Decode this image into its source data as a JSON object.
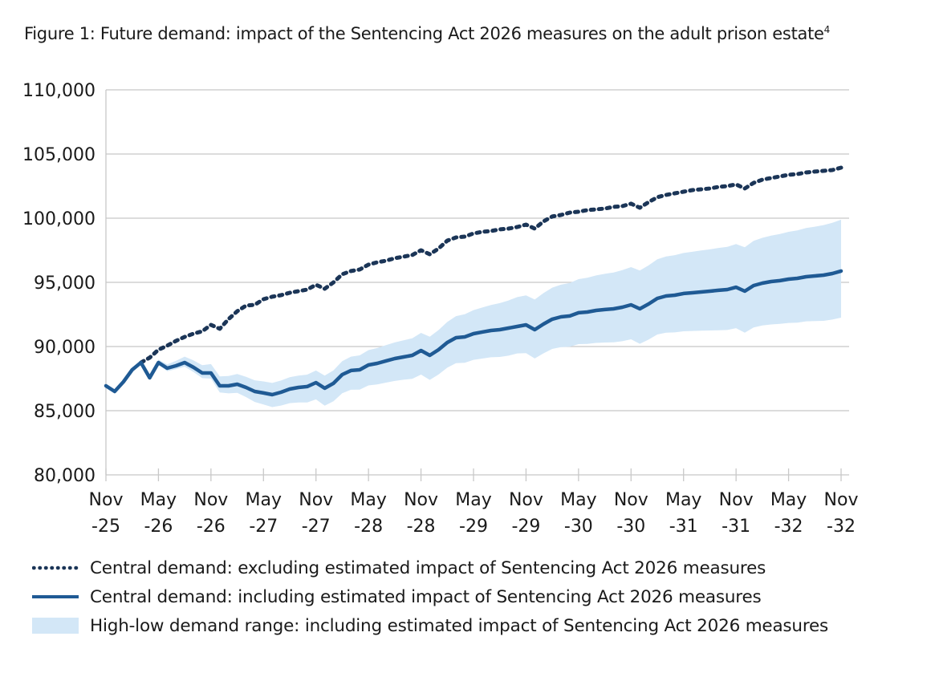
{
  "title": {
    "text": "Figure 1: Future demand: impact of the Sentencing Act 2026 measures on the adult prison estate",
    "footnote": "4"
  },
  "colors": {
    "excluding": "#1b3557",
    "including": "#1f5a94",
    "range": "#d3e7f7",
    "grid": "#c8c8c8",
    "text": "#1a1a1a"
  },
  "chart_data": {
    "type": "line",
    "title": "Figure 1: Future demand: impact of the Sentencing Act 2026 measures on the adult prison estate",
    "xlabel": "",
    "ylabel": "",
    "ylim": [
      80000,
      110000
    ],
    "yticks": [
      80000,
      85000,
      90000,
      95000,
      100000,
      105000,
      110000
    ],
    "ytick_labels": [
      "80,000",
      "85,000",
      "90,000",
      "95,000",
      "100,000",
      "105,000",
      "110,000"
    ],
    "grid": true,
    "x_range_months": [
      0,
      84
    ],
    "x_start": "Nov 2025",
    "x_step": "1 month",
    "xticks": [
      {
        "month_index": 0,
        "line1": "Nov",
        "line2": "-25"
      },
      {
        "month_index": 6,
        "line1": "May",
        "line2": "-26"
      },
      {
        "month_index": 12,
        "line1": "Nov",
        "line2": "-26"
      },
      {
        "month_index": 18,
        "line1": "May",
        "line2": "-27"
      },
      {
        "month_index": 24,
        "line1": "Nov",
        "line2": "-27"
      },
      {
        "month_index": 30,
        "line1": "May",
        "line2": "-28"
      },
      {
        "month_index": 36,
        "line1": "Nov",
        "line2": "-28"
      },
      {
        "month_index": 42,
        "line1": "May",
        "line2": "-29"
      },
      {
        "month_index": 48,
        "line1": "Nov",
        "line2": "-29"
      },
      {
        "month_index": 54,
        "line1": "May",
        "line2": "-30"
      },
      {
        "month_index": 60,
        "line1": "Nov",
        "line2": "-30"
      },
      {
        "month_index": 66,
        "line1": "May",
        "line2": "-31"
      },
      {
        "month_index": 72,
        "line1": "Nov",
        "line2": "-31"
      },
      {
        "month_index": 78,
        "line1": "May",
        "line2": "-32"
      },
      {
        "month_index": 84,
        "line1": "Nov",
        "line2": "-32"
      }
    ],
    "series": [
      {
        "name": "Central demand: excluding estimated impact of Sentencing Act 2026 measures",
        "style": "dotted",
        "start_index": 4,
        "values": [
          88750,
          89130,
          89750,
          90060,
          90440,
          90750,
          91000,
          91190,
          91690,
          91380,
          92130,
          92750,
          93190,
          93250,
          93690,
          93880,
          94000,
          94190,
          94310,
          94440,
          94810,
          94500,
          95000,
          95630,
          95880,
          96000,
          96380,
          96560,
          96690,
          96880,
          97000,
          97130,
          97500,
          97190,
          97630,
          98250,
          98500,
          98560,
          98810,
          98940,
          99000,
          99130,
          99190,
          99310,
          99500,
          99190,
          99750,
          100130,
          100250,
          100440,
          100500,
          100630,
          100690,
          100750,
          100880,
          100940,
          101130,
          100810,
          101250,
          101630,
          101810,
          101940,
          102060,
          102190,
          102250,
          102310,
          102440,
          102500,
          102630,
          102310,
          102750,
          103000,
          103130,
          103250,
          103380,
          103440,
          103560,
          103630,
          103690,
          103750,
          103940
        ]
      },
      {
        "name": "Central demand: including estimated impact of Sentencing Act 2026 measures",
        "style": "solid",
        "start_index": 0,
        "values": [
          86940,
          86500,
          87250,
          88190,
          88750,
          87560,
          88750,
          88310,
          88500,
          88750,
          88380,
          87940,
          87940,
          86940,
          86940,
          87060,
          86810,
          86500,
          86380,
          86250,
          86440,
          86690,
          86810,
          86880,
          87190,
          86750,
          87130,
          87810,
          88130,
          88190,
          88560,
          88690,
          88880,
          89060,
          89190,
          89310,
          89690,
          89310,
          89750,
          90310,
          90690,
          90750,
          91000,
          91130,
          91250,
          91310,
          91440,
          91560,
          91690,
          91310,
          91750,
          92130,
          92310,
          92380,
          92630,
          92690,
          92810,
          92880,
          92940,
          93060,
          93250,
          92940,
          93310,
          93750,
          93940,
          94000,
          94130,
          94190,
          94250,
          94310,
          94380,
          94440,
          94620,
          94310,
          94750,
          94940,
          95060,
          95130,
          95250,
          95310,
          95440,
          95500,
          95560,
          95690,
          95880
        ]
      }
    ],
    "range": {
      "name": "High-low demand range: including estimated impact of Sentencing Act 2026 measures",
      "start_index": 5,
      "upper": [
        87710,
        88980,
        88610,
        88880,
        89210,
        88920,
        88550,
        88630,
        87670,
        87700,
        87860,
        87640,
        87370,
        87280,
        87160,
        87350,
        87610,
        87740,
        87810,
        88130,
        87730,
        88140,
        88860,
        89210,
        89310,
        89720,
        89880,
        90110,
        90320,
        90490,
        90640,
        91060,
        90760,
        91280,
        91910,
        92370,
        92510,
        92840,
        93040,
        93240,
        93380,
        93590,
        93850,
        93990,
        93660,
        94160,
        94590,
        94820,
        94950,
        95250,
        95360,
        95540,
        95660,
        95770,
        95950,
        96190,
        95920,
        96320,
        96800,
        97020,
        97120,
        97290,
        97380,
        97480,
        97570,
        97680,
        97770,
        97990,
        97730,
        98230,
        98470,
        98640,
        98760,
        98940,
        99050,
        99230,
        99340,
        99460,
        99640,
        99880
      ],
      "lower": [
        87410,
        88560,
        88080,
        88230,
        88430,
        88020,
        87540,
        87500,
        86420,
        86350,
        86390,
        86060,
        85680,
        85480,
        85280,
        85400,
        85590,
        85640,
        85640,
        85880,
        85390,
        85730,
        86360,
        86630,
        86640,
        86970,
        87050,
        87190,
        87320,
        87410,
        87480,
        87810,
        87400,
        87820,
        88350,
        88700,
        88740,
        88960,
        89060,
        89160,
        89190,
        89290,
        89460,
        89490,
        89070,
        89470,
        89810,
        89950,
        89980,
        90190,
        90200,
        90280,
        90310,
        90330,
        90410,
        90560,
        90210,
        90540,
        90940,
        91080,
        91100,
        91190,
        91210,
        91230,
        91250,
        91270,
        91290,
        91430,
        91080,
        91490,
        91640,
        91720,
        91760,
        91840,
        91860,
        91960,
        91980,
        92000,
        92100,
        92250
      ]
    },
    "legend": {
      "position": "bottom-left",
      "entries": [
        {
          "key": "excluding",
          "label": "Central demand: excluding estimated impact of Sentencing Act 2026 measures"
        },
        {
          "key": "including",
          "label": "Central demand: including estimated impact of Sentencing Act 2026 measures"
        },
        {
          "key": "range",
          "label": "High-low demand range: including estimated impact of Sentencing Act 2026 measures"
        }
      ]
    }
  }
}
